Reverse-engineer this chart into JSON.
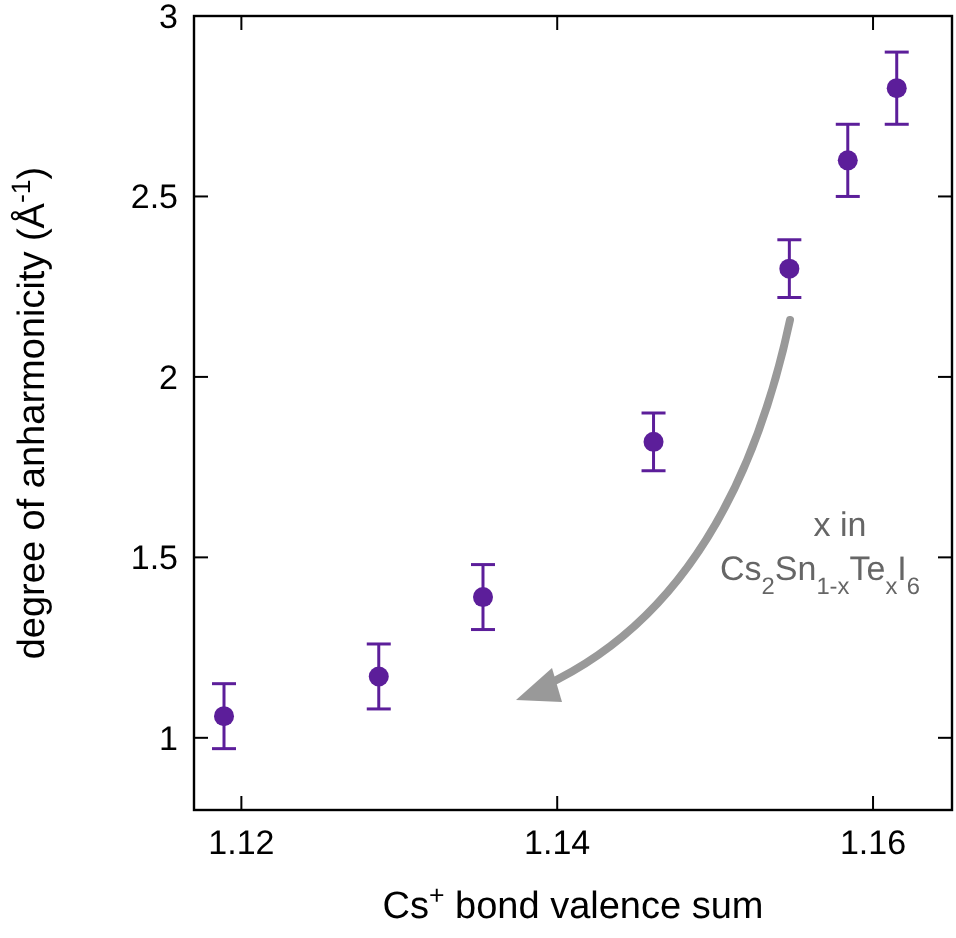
{
  "chart_data": {
    "type": "scatter",
    "xlabel": "Cs$^{+}$ bond valence sum",
    "ylabel": "degree of anharmonicity (Å$^{-1}$)",
    "x": [
      1.1189,
      1.1287,
      1.1353,
      1.1461,
      1.1547,
      1.1584,
      1.1615
    ],
    "series": [
      {
        "color": "#5c1e9a",
        "values": [
          1.06,
          1.17,
          1.39,
          1.82,
          2.3,
          2.6,
          2.8
        ],
        "errors": [
          0.09,
          0.09,
          0.09,
          0.08,
          0.08,
          0.1,
          0.1
        ]
      }
    ],
    "xlim": [
      1.117,
      1.165
    ],
    "xticks": [
      1.12,
      1.14,
      1.16
    ],
    "ylim": [
      0.8,
      3
    ],
    "yticks": [
      1,
      1.5,
      2,
      2.5,
      3
    ],
    "marker": "circle",
    "grid": false,
    "annotations": [
      "x in Cs$_{2}$Sn$_{1-x}$Te$_{x}$I$_{6}$"
    ]
  }
}
